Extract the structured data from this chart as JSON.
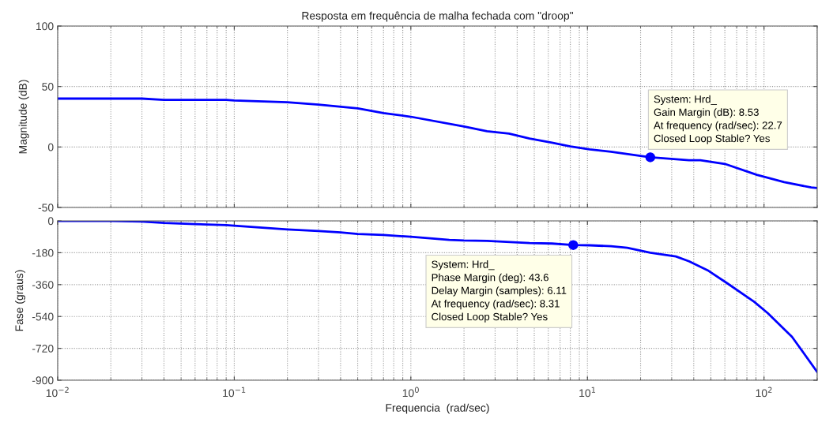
{
  "chart_data": [
    {
      "type": "line",
      "title": "Resposta em frequência de malha fechada com \"droop\"",
      "ylabel": "Magnitude (dB)",
      "log": "x",
      "grid": true,
      "tick_labels": "y",
      "marker": "none",
      "line_style": "solid",
      "xlim": [
        0.01,
        200
      ],
      "xticks": [
        {
          "value": 0.01,
          "label": null
        },
        {
          "value": 0.1,
          "label": null
        },
        {
          "value": 1,
          "label": null
        },
        {
          "value": 10,
          "label": null
        },
        {
          "value": 100,
          "label": null
        }
      ],
      "ylim": [
        -50,
        100
      ],
      "yticks": [
        -50,
        0,
        50,
        100
      ],
      "series": [
        {
          "color": "#0000ff",
          "x": [
            0.01,
            0.02,
            0.03,
            0.04,
            0.06,
            0.09,
            0.1,
            0.2,
            0.3,
            0.5,
            0.7,
            1.0,
            2.0,
            2.7,
            3.6,
            4.7,
            6.3,
            8.0,
            10.3,
            13.6,
            22.7,
            37.6,
            43.6,
            60,
            91,
            130,
            185,
            200
          ],
          "values": [
            40,
            40,
            40,
            39,
            39,
            39,
            38.5,
            37,
            35,
            32,
            28,
            25,
            17,
            13,
            11,
            7,
            3.5,
            0.4,
            -2,
            -4,
            -8.5,
            -11,
            -11,
            -14,
            -23,
            -29,
            -33.5,
            -34
          ]
        }
      ],
      "annotations": [
        {
          "text": "System: Hrd_\nGain Margin (dB): 8.53\nAt frequency (rad/sec): 22.7\nClosed Loop Stable? Yes",
          "x": 22.7,
          "y": -8.53
        }
      ]
    },
    {
      "type": "line",
      "ylabel": "Fase (graus)",
      "xlabel": "Frequencia  (rad/sec)",
      "log": "x",
      "grid": true,
      "marker": "none",
      "line_style": "solid",
      "xlim": [
        0.01,
        200
      ],
      "xticks": [
        {
          "value": 0.01,
          "label": "10$^{−2}$"
        },
        {
          "value": 0.1,
          "label": "10$^{−1}$"
        },
        {
          "value": 1,
          "label": "10$^{0}$"
        },
        {
          "value": 10,
          "label": "10$^{1}$"
        },
        {
          "value": 100,
          "label": "10$^{2}$"
        }
      ],
      "ylim": [
        -900,
        0
      ],
      "yticks": [
        -900,
        -720,
        -540,
        -360,
        -180,
        0
      ],
      "series": [
        {
          "color": "#0000ff",
          "x": [
            0.01,
            0.02,
            0.03,
            0.04,
            0.06,
            0.09,
            0.1,
            0.2,
            0.3,
            0.4,
            0.5,
            0.7,
            1.0,
            1.65,
            2.0,
            2.7,
            4.7,
            6.3,
            8.31,
            10.3,
            13.6,
            16.8,
            22.7,
            31.7,
            37.6,
            48.5,
            62,
            88,
            105,
            144,
            200
          ],
          "values": [
            0,
            0,
            -4,
            -12,
            -18,
            -24,
            -27,
            -48,
            -57,
            -65,
            -74,
            -80,
            -90,
            -107,
            -111,
            -113,
            -125,
            -128,
            -136,
            -138,
            -143,
            -152,
            -180,
            -201,
            -228,
            -282,
            -353,
            -457,
            -521,
            -655,
            -853
          ]
        }
      ],
      "annotations": [
        {
          "text": "System: Hrd_\nPhase Margin (deg): 43.6\nDelay Margin (samples): 6.11\nAt frequency (rad/sec): 8.31\nClosed Loop Stable? Yes",
          "x": 8.31,
          "y": -136.4
        }
      ]
    }
  ]
}
